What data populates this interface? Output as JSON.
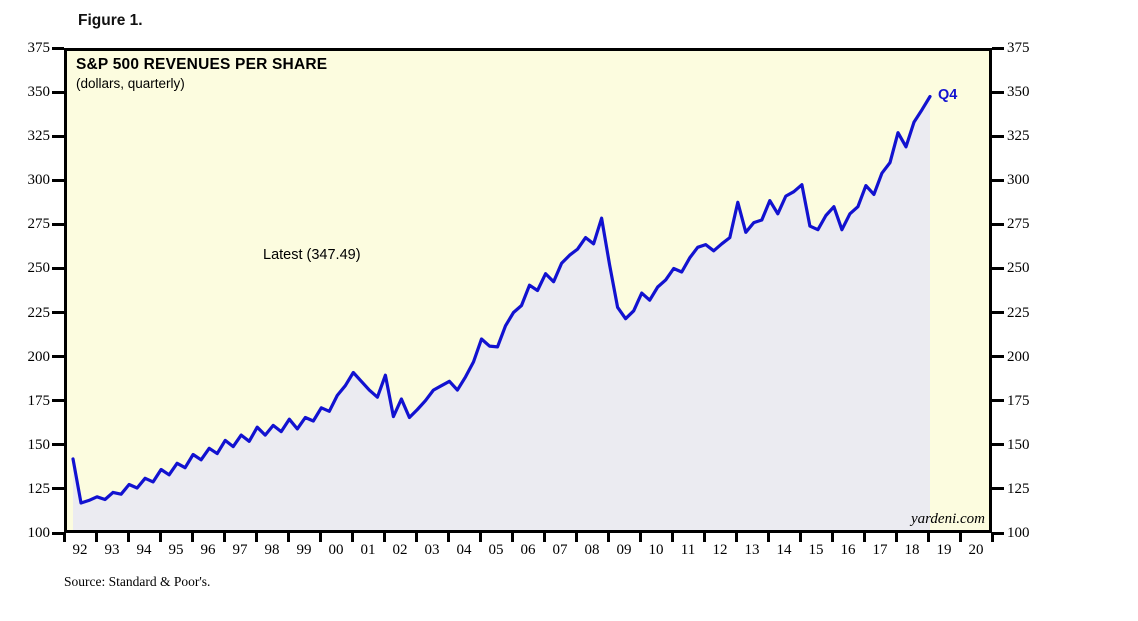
{
  "chart_data": {
    "type": "line",
    "figure_label": "Figure 1.",
    "title": "S&P 500 REVENUES PER SHARE",
    "subtitle": "(dollars, quarterly)",
    "latest_annotation": "Latest (347.49)",
    "latest_value": 347.49,
    "end_label": "Q4",
    "watermark": "yardeni.com",
    "source": "Source: Standard & Poor's.",
    "frequency": "quarterly",
    "start_period": "1992 Q1",
    "end_period": "2018 Q4",
    "grid": false,
    "ylim": [
      100,
      375
    ],
    "y_tick_step": 25,
    "y_tick_labels": [
      "375",
      "350",
      "325",
      "300",
      "275",
      "250",
      "225",
      "200",
      "175",
      "150",
      "125",
      "100"
    ],
    "x_tick_labels": [
      "92",
      "93",
      "94",
      "95",
      "96",
      "97",
      "98",
      "99",
      "00",
      "01",
      "02",
      "03",
      "04",
      "05",
      "06",
      "07",
      "08",
      "09",
      "10",
      "11",
      "12",
      "13",
      "14",
      "15",
      "16",
      "17",
      "18",
      "19",
      "20"
    ],
    "colors": {
      "plot_background": "#fcfcdf",
      "area_fill": "#ebebf1",
      "line": "#1212d0",
      "axis": "#000000"
    },
    "series": [
      {
        "name": "S&P 500 revenues per share (dollars, quarterly)",
        "values": [
          142,
          117,
          118.5,
          120.5,
          119,
          123,
          122,
          127.5,
          125.5,
          131,
          129,
          136,
          133,
          139.5,
          137,
          144.5,
          141.5,
          148,
          145,
          152.5,
          149,
          155.5,
          152,
          160,
          155.5,
          161,
          157.5,
          164.5,
          159,
          165.5,
          163.5,
          171,
          169,
          178,
          183.5,
          191,
          186,
          181,
          177,
          189.5,
          166,
          176,
          165.5,
          170,
          175,
          181,
          183.5,
          186,
          181,
          188.5,
          197,
          210,
          206,
          205.5,
          217.5,
          225,
          229,
          240.5,
          237.5,
          247,
          242.5,
          253,
          257.5,
          261,
          267.5,
          264,
          278.5,
          252,
          228,
          221.5,
          226,
          236,
          232,
          239.5,
          243.5,
          250,
          248,
          256,
          262,
          263.5,
          260,
          264,
          267.5,
          287.5,
          270.5,
          276,
          277.5,
          288.5,
          281,
          291,
          293.5,
          297.5,
          274,
          272,
          280,
          285,
          272,
          281,
          285,
          297,
          292,
          304,
          310,
          327,
          319,
          333,
          340,
          347.49
        ]
      }
    ]
  }
}
